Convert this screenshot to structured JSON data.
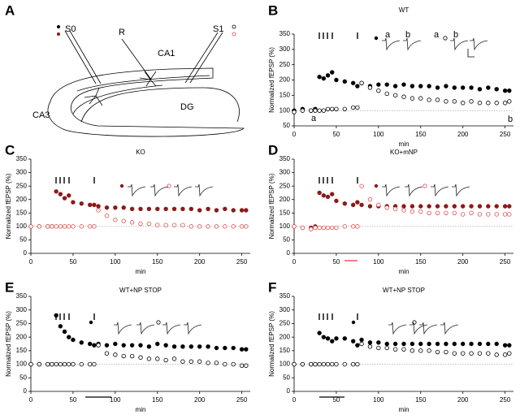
{
  "diagram": {
    "panel": "A",
    "labels": [
      "S0",
      "R",
      "S1",
      "CA1",
      "CA3",
      "DG"
    ]
  },
  "chart_data": [
    {
      "type": "scatter",
      "panel": "B",
      "title": "WT",
      "xlabel": "min",
      "ylabel": "Normalized fEPSP (%)",
      "xlim": [
        0,
        260
      ],
      "xticks": [
        0,
        50,
        100,
        150,
        200,
        250
      ],
      "ylim": [
        50,
        350
      ],
      "yticks": [
        50,
        100,
        150,
        200,
        250,
        300,
        350
      ],
      "hline": 100,
      "x": [
        0,
        10,
        20,
        25,
        30,
        35,
        40,
        45,
        50,
        60,
        70,
        75,
        80,
        90,
        100,
        110,
        120,
        130,
        140,
        150,
        160,
        170,
        180,
        190,
        200,
        210,
        220,
        230,
        240,
        250,
        255
      ],
      "series": [
        {
          "color": "#000000",
          "marker": "filled",
          "values": [
            100,
            105,
            100,
            105,
            210,
            205,
            215,
            225,
            200,
            195,
            190,
            180,
            190,
            180,
            185,
            185,
            180,
            185,
            180,
            180,
            180,
            175,
            180,
            175,
            175,
            175,
            170,
            175,
            170,
            165,
            165
          ]
        },
        {
          "color": "#000000",
          "marker": "open",
          "values": [
            95,
            100,
            100,
            100,
            100,
            100,
            105,
            105,
            105,
            105,
            110,
            110,
            190,
            175,
            165,
            155,
            150,
            145,
            140,
            140,
            135,
            135,
            130,
            130,
            125,
            130,
            125,
            125,
            125,
            125,
            130
          ]
        }
      ],
      "annotations": [
        "a",
        "b",
        "a",
        "b",
        "a",
        "b"
      ]
    },
    {
      "type": "scatter",
      "panel": "C",
      "title": "KO",
      "xlabel": "min",
      "ylabel": "Normalized fEPSP (%)",
      "xlim": [
        0,
        260
      ],
      "xticks": [
        0,
        50,
        100,
        150,
        200,
        250
      ],
      "ylim": [
        0,
        350
      ],
      "yticks": [
        0,
        50,
        100,
        150,
        200,
        250,
        300,
        350
      ],
      "hline": 100,
      "x": [
        0,
        10,
        20,
        25,
        30,
        35,
        40,
        45,
        50,
        60,
        70,
        75,
        80,
        90,
        100,
        110,
        120,
        130,
        140,
        150,
        160,
        170,
        180,
        190,
        200,
        210,
        220,
        230,
        240,
        250,
        255
      ],
      "series": [
        {
          "color": "#8b1a1a",
          "marker": "filled",
          "values": [
            100,
            100,
            100,
            100,
            230,
            220,
            205,
            215,
            190,
            185,
            180,
            180,
            175,
            170,
            170,
            170,
            165,
            165,
            165,
            165,
            165,
            165,
            165,
            165,
            160,
            165,
            160,
            165,
            160,
            160,
            160
          ]
        },
        {
          "color": "#e05050",
          "marker": "open",
          "values": [
            100,
            100,
            100,
            100,
            100,
            100,
            100,
            100,
            100,
            100,
            100,
            100,
            160,
            140,
            125,
            120,
            115,
            110,
            110,
            105,
            105,
            105,
            105,
            100,
            100,
            100,
            100,
            100,
            100,
            100,
            100
          ]
        }
      ]
    },
    {
      "type": "scatter",
      "panel": "D",
      "title": "KO+mNP",
      "xlabel": "min",
      "ylabel": "Normalized fEPSP (%)",
      "xlim": [
        0,
        260
      ],
      "xticks": [
        0,
        50,
        100,
        150,
        200,
        250
      ],
      "ylim": [
        0,
        350
      ],
      "yticks": [
        0,
        50,
        100,
        150,
        200,
        250,
        300,
        350
      ],
      "hline": 100,
      "x": [
        0,
        10,
        20,
        25,
        30,
        35,
        40,
        45,
        50,
        60,
        70,
        75,
        80,
        90,
        100,
        110,
        120,
        130,
        140,
        150,
        160,
        170,
        180,
        190,
        200,
        210,
        220,
        230,
        240,
        250,
        255
      ],
      "series": [
        {
          "color": "#8b1a1a",
          "marker": "filled",
          "values": [
            100,
            95,
            95,
            100,
            225,
            215,
            210,
            220,
            195,
            185,
            180,
            190,
            180,
            175,
            175,
            175,
            175,
            175,
            175,
            175,
            175,
            175,
            175,
            175,
            175,
            175,
            175,
            175,
            175,
            175,
            175
          ]
        },
        {
          "color": "#e05050",
          "marker": "open",
          "values": [
            100,
            95,
            90,
            95,
            95,
            95,
            95,
            95,
            95,
            100,
            100,
            100,
            250,
            200,
            180,
            170,
            165,
            160,
            155,
            155,
            150,
            150,
            150,
            150,
            145,
            150,
            145,
            145,
            145,
            145,
            145
          ]
        }
      ]
    },
    {
      "type": "scatter",
      "panel": "E",
      "title": "WT+NP STOP",
      "xlabel": "min",
      "ylabel": "Normalized fEPSP (%)",
      "xlim": [
        0,
        260
      ],
      "xticks": [
        0,
        50,
        100,
        150,
        200,
        250
      ],
      "ylim": [
        0,
        350
      ],
      "yticks": [
        0,
        50,
        100,
        150,
        200,
        250,
        300,
        350
      ],
      "hline": 100,
      "x": [
        0,
        10,
        20,
        25,
        30,
        35,
        40,
        45,
        50,
        60,
        70,
        75,
        80,
        90,
        100,
        110,
        120,
        130,
        140,
        150,
        160,
        170,
        180,
        190,
        200,
        210,
        220,
        230,
        240,
        250,
        255
      ],
      "series": [
        {
          "color": "#000000",
          "marker": "filled",
          "values": [
            100,
            100,
            100,
            100,
            280,
            240,
            220,
            200,
            190,
            180,
            175,
            170,
            175,
            170,
            175,
            170,
            170,
            170,
            165,
            175,
            170,
            165,
            165,
            165,
            165,
            165,
            160,
            160,
            160,
            155,
            155
          ]
        },
        {
          "color": "#000000",
          "marker": "open",
          "values": [
            100,
            100,
            100,
            100,
            100,
            100,
            100,
            100,
            100,
            100,
            100,
            100,
            170,
            140,
            135,
            130,
            130,
            125,
            120,
            120,
            115,
            120,
            110,
            110,
            110,
            105,
            105,
            100,
            100,
            95,
            95
          ]
        }
      ]
    },
    {
      "type": "scatter",
      "panel": "F",
      "title": "WT+NP STOP",
      "xlabel": "min",
      "ylabel": "Normalized fEPSP (%)",
      "xlim": [
        0,
        260
      ],
      "xticks": [
        0,
        50,
        100,
        150,
        200,
        250
      ],
      "ylim": [
        0,
        350
      ],
      "yticks": [
        0,
        50,
        100,
        150,
        200,
        250,
        300,
        350
      ],
      "hline": 100,
      "x": [
        0,
        10,
        20,
        25,
        30,
        35,
        40,
        45,
        50,
        60,
        70,
        75,
        80,
        90,
        100,
        110,
        120,
        130,
        140,
        150,
        160,
        170,
        180,
        190,
        200,
        210,
        220,
        230,
        240,
        250,
        255
      ],
      "series": [
        {
          "color": "#000000",
          "marker": "filled",
          "values": [
            100,
            100,
            100,
            100,
            215,
            200,
            195,
            185,
            195,
            195,
            185,
            170,
            190,
            180,
            180,
            175,
            175,
            175,
            175,
            175,
            175,
            175,
            175,
            175,
            175,
            175,
            175,
            175,
            175,
            170,
            170
          ]
        },
        {
          "color": "#000000",
          "marker": "open",
          "values": [
            100,
            100,
            100,
            100,
            100,
            100,
            100,
            100,
            100,
            100,
            100,
            100,
            175,
            165,
            160,
            160,
            155,
            155,
            150,
            150,
            150,
            145,
            145,
            140,
            140,
            140,
            140,
            140,
            135,
            135,
            140
          ]
        }
      ]
    }
  ]
}
